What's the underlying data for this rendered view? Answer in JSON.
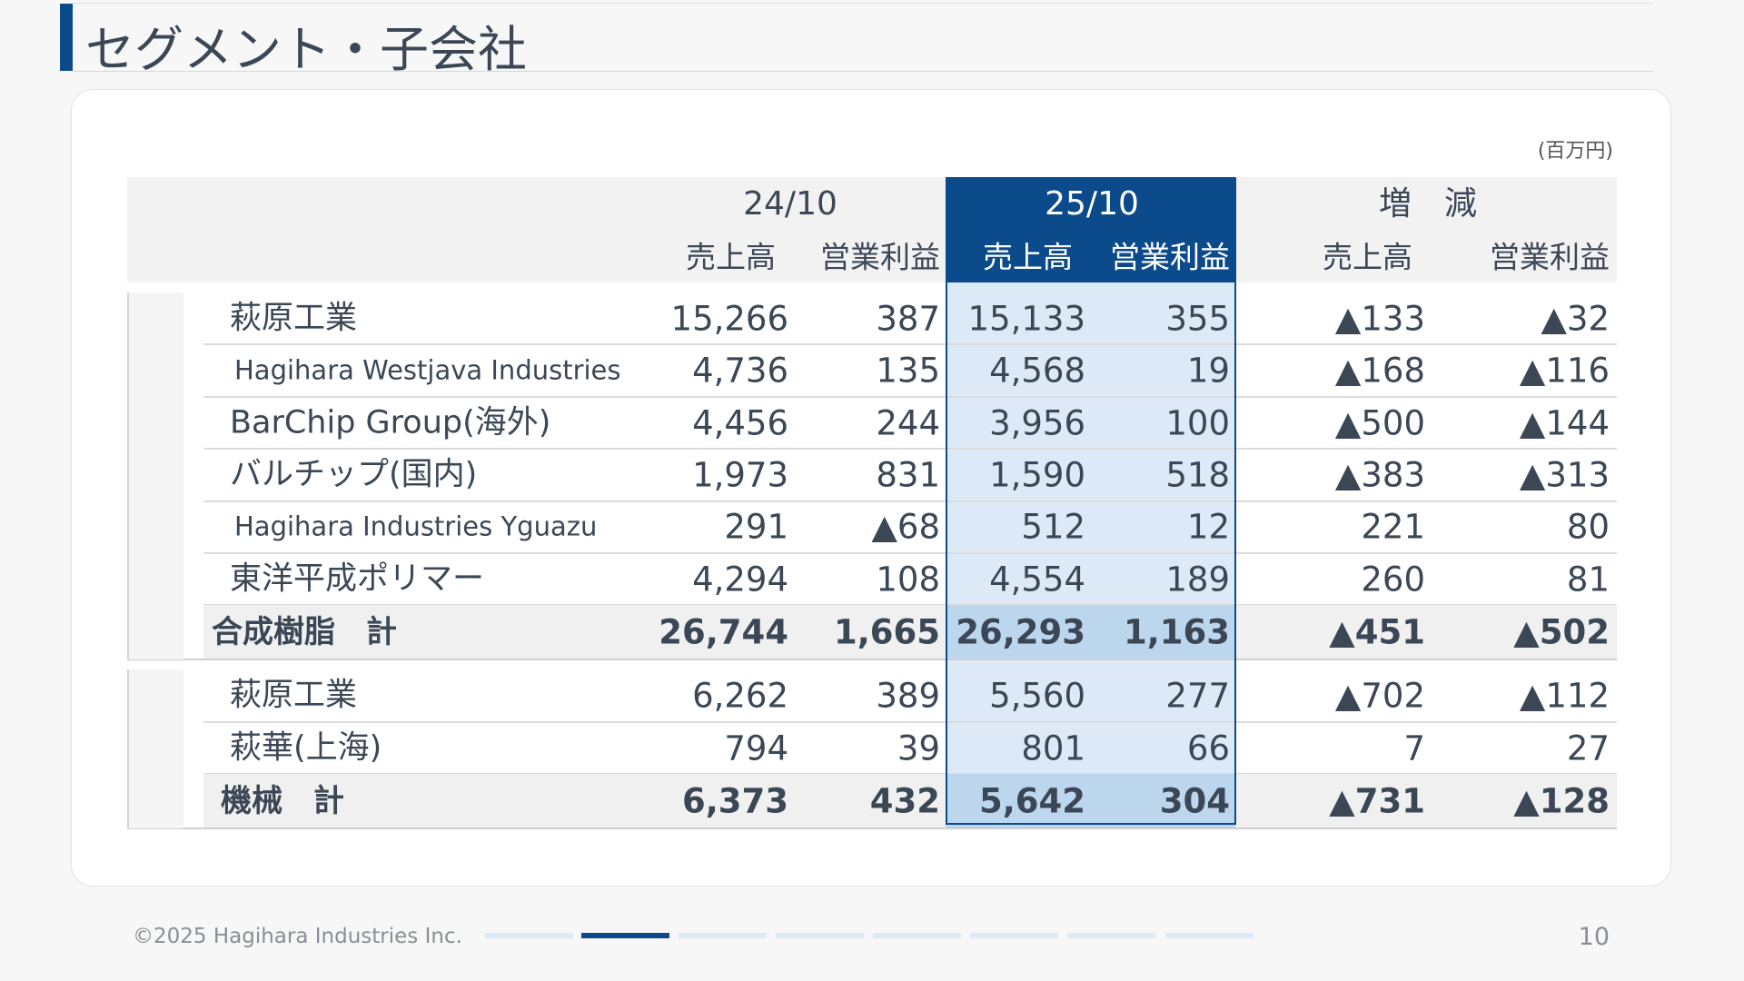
{
  "header": {
    "title": "セグメント・子会社"
  },
  "table": {
    "unit": "(百万円)",
    "periods": [
      "24/10",
      "25/10",
      "増　減"
    ],
    "columns": [
      "売上高",
      "営業利益",
      "売上高",
      "営業利益",
      "売上高",
      "営業利益"
    ],
    "groups": [
      {
        "rows": [
          [
            "萩原工業",
            "15,266",
            "387",
            "15,133",
            "355",
            "▲133",
            "▲32"
          ],
          [
            "Hagihara Westjava Industries",
            "4,736",
            "135",
            "4,568",
            "19",
            "▲168",
            "▲116"
          ],
          [
            "BarChip Group(海外)",
            "4,456",
            "244",
            "3,956",
            "100",
            "▲500",
            "▲144"
          ],
          [
            "バルチップ(国内)",
            "1,973",
            "831",
            "1,590",
            "518",
            "▲383",
            "▲313"
          ],
          [
            "Hagihara Industries Yguazu",
            "291",
            "▲68",
            "512",
            "12",
            "221",
            "80"
          ],
          [
            "東洋平成ポリマー",
            "4,294",
            "108",
            "4,554",
            "189",
            "260",
            "81"
          ]
        ],
        "total": [
          "合成樹脂　計",
          "26,744",
          "1,665",
          "26,293",
          "1,163",
          "▲451",
          "▲502"
        ]
      },
      {
        "rows": [
          [
            "萩原工業",
            "6,262",
            "389",
            "5,560",
            "277",
            "▲702",
            "▲112"
          ],
          [
            "萩華(上海)",
            "794",
            "39",
            "801",
            "66",
            "7",
            "27"
          ]
        ],
        "total": [
          "機械　計",
          "6,373",
          "432",
          "5,642",
          "304",
          "▲731",
          "▲128"
        ]
      }
    ]
  },
  "footer": {
    "copyright": "©2025 Hagihara Industries Inc.",
    "page": "10"
  }
}
